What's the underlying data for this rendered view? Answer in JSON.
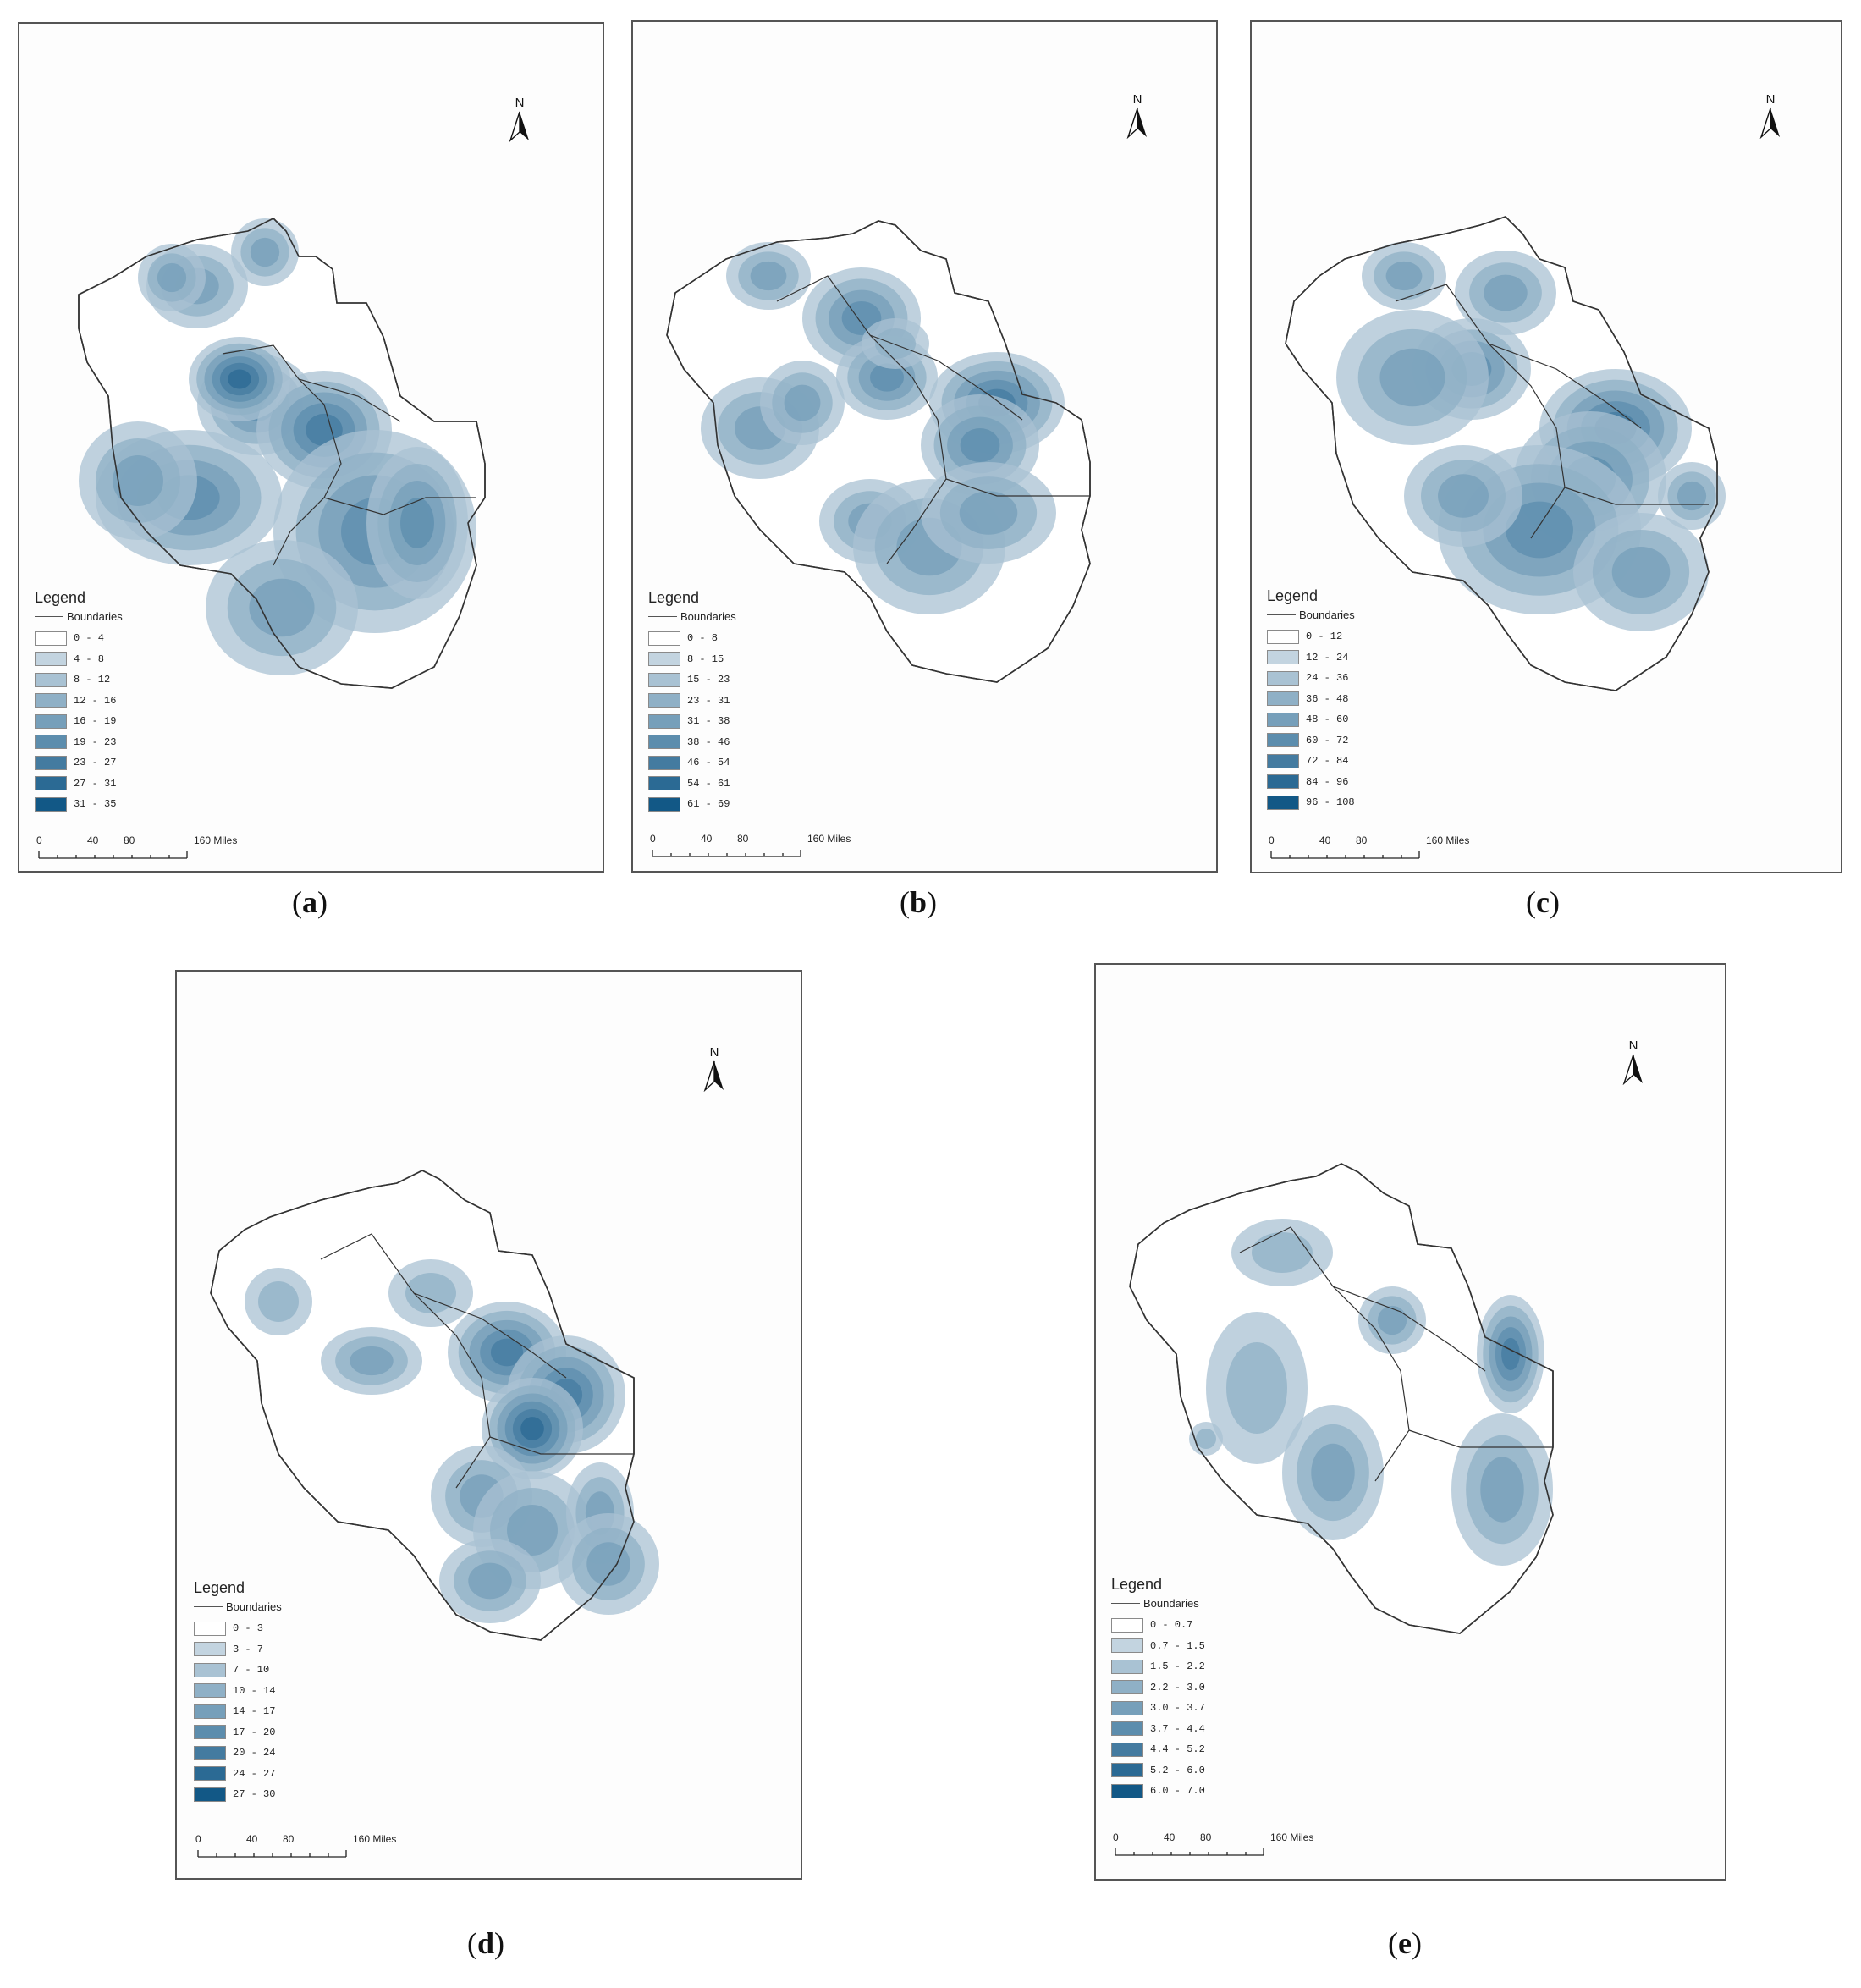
{
  "ramp": [
    "#ffffff",
    "#c3d4e0",
    "#a9c2d3",
    "#8fb0c6",
    "#769fba",
    "#5c8dad",
    "#447ba0",
    "#2b6a94",
    "#125886"
  ],
  "north_label": "N",
  "legend_title": "Legend",
  "boundaries_label": "Boundaries",
  "scale_labels": [
    "0",
    "40",
    "80",
    "160 Miles"
  ],
  "panels": [
    {
      "caption": "a",
      "classes": [
        "0 - 4",
        "4 - 8",
        "8 - 12",
        "12 - 16",
        "16 - 19",
        "19 - 23",
        "23 - 27",
        "27 - 31",
        "31 - 35"
      ]
    },
    {
      "caption": "b",
      "classes": [
        "0 - 8",
        "8 - 15",
        "15 - 23",
        "23 - 31",
        "31 - 38",
        "38 - 46",
        "46 - 54",
        "54 - 61",
        "61 - 69"
      ]
    },
    {
      "caption": "c",
      "classes": [
        "0 - 12",
        "12 - 24",
        "24 - 36",
        "36 - 48",
        "48 - 60",
        "60 - 72",
        "72 - 84",
        "84 - 96",
        "96 - 108"
      ]
    },
    {
      "caption": "d",
      "classes": [
        "0 - 3",
        "3 - 7",
        "7 - 10",
        "10 - 14",
        "14 - 17",
        "17 - 20",
        "20 - 24",
        "24 - 27",
        "27 - 30"
      ]
    },
    {
      "caption": "e",
      "classes": [
        "0 - 0.7",
        "0.7 - 1.5",
        "1.5 - 2.2",
        "2.2 - 3.0",
        "3.0 - 3.7",
        "3.7 - 4.4",
        "4.4 - 5.2",
        "5.2 - 6.0",
        "6.0 - 7.0"
      ]
    }
  ]
}
